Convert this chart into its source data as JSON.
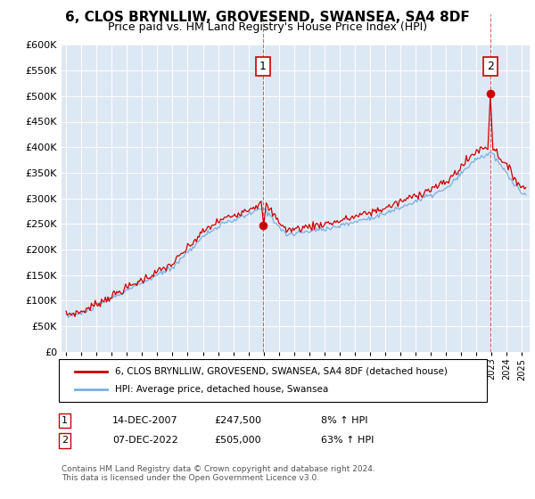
{
  "title": "6, CLOS BRYNLLIW, GROVESEND, SWANSEA, SA4 8DF",
  "subtitle": "Price paid vs. HM Land Registry's House Price Index (HPI)",
  "legend_line1": "6, CLOS BRYNLLIW, GROVESEND, SWANSEA, SA4 8DF (detached house)",
  "legend_line2": "HPI: Average price, detached house, Swansea",
  "footer": "Contains HM Land Registry data © Crown copyright and database right 2024.\nThis data is licensed under the Open Government Licence v3.0.",
  "annotation1_label": "1",
  "annotation1_date": "14-DEC-2007",
  "annotation1_price": "£247,500",
  "annotation1_hpi": "8% ↑ HPI",
  "annotation2_label": "2",
  "annotation2_date": "07-DEC-2022",
  "annotation2_price": "£505,000",
  "annotation2_hpi": "63% ↑ HPI",
  "red_color": "#cc0000",
  "blue_color": "#7aafe0",
  "background_color": "#dde8f5",
  "ylim": [
    0,
    600000
  ],
  "yticks": [
    0,
    50000,
    100000,
    150000,
    200000,
    250000,
    300000,
    350000,
    400000,
    450000,
    500000,
    550000,
    600000
  ],
  "sale1_x": 2007.96,
  "sale1_y": 247500,
  "sale2_x": 2022.92,
  "sale2_y": 505000,
  "xmin": 1994.7,
  "xmax": 2025.5
}
